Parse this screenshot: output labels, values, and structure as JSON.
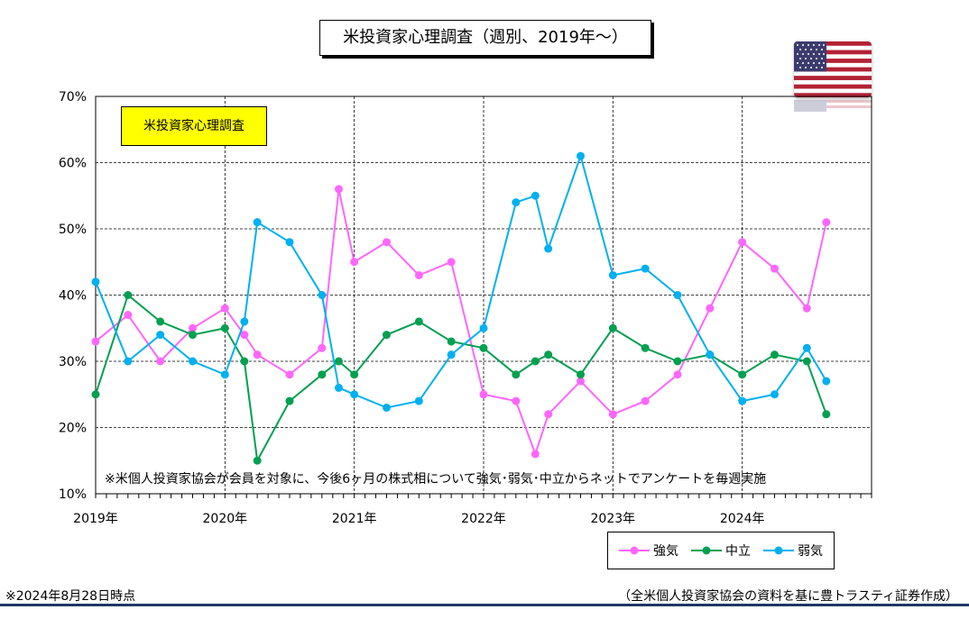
{
  "title": "米投資家心理調査（週別、2019年～）",
  "inner_label": "米投資家心理調査",
  "note_inside": "※米個人投資家協会が会員を対象に、今後6ヶ月の株式相について強気･弱気･中立からネットでアンケートを毎週実施",
  "footer_left": "※2024年8月28日時点",
  "footer_right": "（全米個人投資家協会の資料を基に豊トラスティ証券作成）",
  "flag_icon": "us-flag-icon",
  "colors": {
    "bullish": "#ff66ff",
    "neutral": "#00a050",
    "bearish": "#00b0f0"
  },
  "chart_data": {
    "type": "line",
    "y_tick_labels": [
      "10%",
      "20%",
      "30%",
      "40%",
      "50%",
      "60%",
      "70%"
    ],
    "ylim": [
      10,
      70
    ],
    "x_tick_labels": [
      "2019年",
      "2020年",
      "2021年",
      "2022年",
      "2023年",
      "2024年"
    ],
    "x_range_years": [
      2019,
      2025
    ],
    "grid": "horizontal-dashed",
    "legend": "bottom-right",
    "x": [
      2019.0,
      2019.25,
      2019.5,
      2019.75,
      2020.0,
      2020.15,
      2020.25,
      2020.5,
      2020.75,
      2020.88,
      2021.0,
      2021.25,
      2021.5,
      2021.75,
      2022.0,
      2022.25,
      2022.4,
      2022.5,
      2022.75,
      2023.0,
      2023.25,
      2023.5,
      2023.75,
      2024.0,
      2024.25,
      2024.5,
      2024.65
    ],
    "series": [
      {
        "name": "強気",
        "color_key": "bullish",
        "values": [
          33,
          37,
          30,
          35,
          38,
          34,
          31,
          28,
          32,
          56,
          45,
          48,
          43,
          45,
          25,
          24,
          16,
          22,
          27,
          22,
          24,
          28,
          38,
          48,
          44,
          38,
          51
        ]
      },
      {
        "name": "中立",
        "color_key": "neutral",
        "values": [
          25,
          40,
          36,
          34,
          35,
          30,
          15,
          24,
          28,
          30,
          28,
          34,
          36,
          33,
          32,
          28,
          30,
          31,
          28,
          35,
          32,
          30,
          31,
          28,
          31,
          30,
          22
        ]
      },
      {
        "name": "弱気",
        "color_key": "bearish",
        "values": [
          42,
          30,
          34,
          30,
          28,
          36,
          51,
          48,
          40,
          26,
          25,
          23,
          24,
          31,
          35,
          54,
          55,
          47,
          61,
          43,
          44,
          40,
          31,
          24,
          25,
          32,
          27
        ]
      }
    ]
  }
}
